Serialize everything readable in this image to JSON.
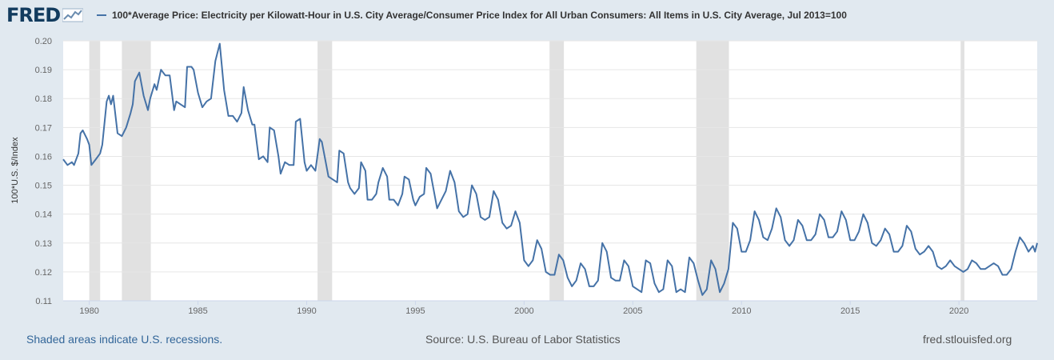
{
  "header": {
    "logo_text": "FRED",
    "logo_icon": "line-graph-icon",
    "legend_label": "100*Average Price: Electricity per Kilowatt-Hour in U.S. City Average/Consumer Price Index for All Urban Consumers: All Items in U.S. City Average, Jul 2013=100"
  },
  "footer": {
    "recession_note": "Shaded areas indicate U.S. recessions.",
    "source": "Source: U.S. Bureau of Labor Statistics",
    "site": "fred.stlouisfed.org"
  },
  "colors": {
    "page_background": "#e1e9f0",
    "plot_background": "#ffffff",
    "series_line": "#4572a7",
    "recession_shade": "#e1e1e1",
    "gridline": "#e6e6e6"
  },
  "chart_data": {
    "type": "line",
    "title": "100*Average Price: Electricity per Kilowatt-Hour in U.S. City Average/Consumer Price Index for All Urban Consumers: All Items in U.S. City Average, Jul 2013=100",
    "xlabel": "",
    "ylabel": "100*U.S. $/Index",
    "xlim": [
      1978.8,
      2023.6
    ],
    "ylim": [
      0.11,
      0.2
    ],
    "x_ticks": [
      1980,
      1985,
      1990,
      1995,
      2000,
      2005,
      2010,
      2015,
      2020
    ],
    "y_ticks": [
      0.11,
      0.12,
      0.13,
      0.14,
      0.15,
      0.16,
      0.17,
      0.18,
      0.19,
      0.2
    ],
    "y_tick_labels": [
      "0.11",
      "0.12",
      "0.13",
      "0.14",
      "0.15",
      "0.16",
      "0.17",
      "0.18",
      "0.19",
      "0.20"
    ],
    "grid": "horizontal",
    "legend": "top",
    "recessions": [
      [
        1980.0,
        1980.5
      ],
      [
        1981.5,
        1982.83
      ],
      [
        1990.5,
        1991.17
      ],
      [
        2001.17,
        2001.83
      ],
      [
        2007.92,
        2009.42
      ],
      [
        2020.08,
        2020.25
      ]
    ],
    "series": [
      {
        "name": "100*Average Price: Electricity per Kilowatt-Hour in U.S. City Average/Consumer Price Index for All Urban Consumers: All Items in U.S. City Average, Jul 2013=100",
        "color": "#4572a7",
        "points": [
          [
            1978.8,
            0.159
          ],
          [
            1979.0,
            0.157
          ],
          [
            1979.2,
            0.158
          ],
          [
            1979.3,
            0.157
          ],
          [
            1979.5,
            0.161
          ],
          [
            1979.6,
            0.168
          ],
          [
            1979.7,
            0.169
          ],
          [
            1979.9,
            0.166
          ],
          [
            1980.0,
            0.164
          ],
          [
            1980.1,
            0.157
          ],
          [
            1980.3,
            0.159
          ],
          [
            1980.5,
            0.161
          ],
          [
            1980.6,
            0.164
          ],
          [
            1980.8,
            0.179
          ],
          [
            1980.9,
            0.181
          ],
          [
            1981.0,
            0.178
          ],
          [
            1981.1,
            0.181
          ],
          [
            1981.3,
            0.168
          ],
          [
            1981.5,
            0.167
          ],
          [
            1981.7,
            0.17
          ],
          [
            1981.9,
            0.175
          ],
          [
            1982.0,
            0.178
          ],
          [
            1982.1,
            0.186
          ],
          [
            1982.3,
            0.189
          ],
          [
            1982.5,
            0.181
          ],
          [
            1982.7,
            0.176
          ],
          [
            1982.8,
            0.18
          ],
          [
            1983.0,
            0.185
          ],
          [
            1983.1,
            0.183
          ],
          [
            1983.3,
            0.19
          ],
          [
            1983.5,
            0.188
          ],
          [
            1983.7,
            0.188
          ],
          [
            1983.9,
            0.176
          ],
          [
            1984.0,
            0.179
          ],
          [
            1984.2,
            0.178
          ],
          [
            1984.4,
            0.177
          ],
          [
            1984.5,
            0.191
          ],
          [
            1984.7,
            0.191
          ],
          [
            1984.8,
            0.19
          ],
          [
            1985.0,
            0.182
          ],
          [
            1985.2,
            0.177
          ],
          [
            1985.4,
            0.179
          ],
          [
            1985.6,
            0.18
          ],
          [
            1985.8,
            0.193
          ],
          [
            1986.0,
            0.199
          ],
          [
            1986.2,
            0.183
          ],
          [
            1986.4,
            0.174
          ],
          [
            1986.6,
            0.174
          ],
          [
            1986.8,
            0.172
          ],
          [
            1987.0,
            0.175
          ],
          [
            1987.1,
            0.184
          ],
          [
            1987.3,
            0.176
          ],
          [
            1987.5,
            0.171
          ],
          [
            1987.6,
            0.171
          ],
          [
            1987.8,
            0.159
          ],
          [
            1988.0,
            0.16
          ],
          [
            1988.2,
            0.158
          ],
          [
            1988.3,
            0.17
          ],
          [
            1988.5,
            0.169
          ],
          [
            1988.7,
            0.16
          ],
          [
            1988.8,
            0.154
          ],
          [
            1989.0,
            0.158
          ],
          [
            1989.2,
            0.157
          ],
          [
            1989.4,
            0.157
          ],
          [
            1989.5,
            0.172
          ],
          [
            1989.7,
            0.173
          ],
          [
            1989.9,
            0.158
          ],
          [
            1990.0,
            0.155
          ],
          [
            1990.2,
            0.157
          ],
          [
            1990.4,
            0.155
          ],
          [
            1990.6,
            0.166
          ],
          [
            1990.7,
            0.165
          ],
          [
            1990.9,
            0.157
          ],
          [
            1991.0,
            0.153
          ],
          [
            1991.2,
            0.152
          ],
          [
            1991.4,
            0.151
          ],
          [
            1991.5,
            0.162
          ],
          [
            1991.7,
            0.161
          ],
          [
            1991.9,
            0.151
          ],
          [
            1992.0,
            0.149
          ],
          [
            1992.2,
            0.147
          ],
          [
            1992.4,
            0.149
          ],
          [
            1992.5,
            0.158
          ],
          [
            1992.7,
            0.155
          ],
          [
            1992.8,
            0.145
          ],
          [
            1993.0,
            0.145
          ],
          [
            1993.2,
            0.147
          ],
          [
            1993.3,
            0.151
          ],
          [
            1993.5,
            0.156
          ],
          [
            1993.7,
            0.153
          ],
          [
            1993.8,
            0.145
          ],
          [
            1994.0,
            0.145
          ],
          [
            1994.2,
            0.143
          ],
          [
            1994.4,
            0.147
          ],
          [
            1994.5,
            0.153
          ],
          [
            1994.7,
            0.152
          ],
          [
            1994.9,
            0.145
          ],
          [
            1995.0,
            0.143
          ],
          [
            1995.2,
            0.146
          ],
          [
            1995.4,
            0.147
          ],
          [
            1995.5,
            0.156
          ],
          [
            1995.7,
            0.154
          ],
          [
            1995.9,
            0.146
          ],
          [
            1996.0,
            0.142
          ],
          [
            1996.2,
            0.145
          ],
          [
            1996.4,
            0.148
          ],
          [
            1996.6,
            0.155
          ],
          [
            1996.8,
            0.151
          ],
          [
            1997.0,
            0.141
          ],
          [
            1997.2,
            0.139
          ],
          [
            1997.4,
            0.14
          ],
          [
            1997.6,
            0.15
          ],
          [
            1997.8,
            0.147
          ],
          [
            1998.0,
            0.139
          ],
          [
            1998.2,
            0.138
          ],
          [
            1998.4,
            0.139
          ],
          [
            1998.6,
            0.148
          ],
          [
            1998.8,
            0.145
          ],
          [
            1999.0,
            0.137
          ],
          [
            1999.2,
            0.135
          ],
          [
            1999.4,
            0.136
          ],
          [
            1999.6,
            0.141
          ],
          [
            1999.8,
            0.137
          ],
          [
            2000.0,
            0.124
          ],
          [
            2000.2,
            0.122
          ],
          [
            2000.4,
            0.124
          ],
          [
            2000.6,
            0.131
          ],
          [
            2000.8,
            0.128
          ],
          [
            2001.0,
            0.12
          ],
          [
            2001.2,
            0.119
          ],
          [
            2001.4,
            0.119
          ],
          [
            2001.6,
            0.126
          ],
          [
            2001.8,
            0.124
          ],
          [
            2002.0,
            0.118
          ],
          [
            2002.2,
            0.115
          ],
          [
            2002.4,
            0.117
          ],
          [
            2002.6,
            0.123
          ],
          [
            2002.8,
            0.121
          ],
          [
            2003.0,
            0.115
          ],
          [
            2003.2,
            0.115
          ],
          [
            2003.4,
            0.117
          ],
          [
            2003.6,
            0.13
          ],
          [
            2003.8,
            0.127
          ],
          [
            2004.0,
            0.118
          ],
          [
            2004.2,
            0.117
          ],
          [
            2004.4,
            0.117
          ],
          [
            2004.6,
            0.124
          ],
          [
            2004.8,
            0.122
          ],
          [
            2005.0,
            0.115
          ],
          [
            2005.2,
            0.114
          ],
          [
            2005.4,
            0.113
          ],
          [
            2005.6,
            0.124
          ],
          [
            2005.8,
            0.123
          ],
          [
            2006.0,
            0.116
          ],
          [
            2006.2,
            0.113
          ],
          [
            2006.4,
            0.114
          ],
          [
            2006.6,
            0.124
          ],
          [
            2006.8,
            0.122
          ],
          [
            2007.0,
            0.113
          ],
          [
            2007.2,
            0.114
          ],
          [
            2007.4,
            0.113
          ],
          [
            2007.6,
            0.125
          ],
          [
            2007.8,
            0.123
          ],
          [
            2008.0,
            0.117
          ],
          [
            2008.2,
            0.112
          ],
          [
            2008.4,
            0.114
          ],
          [
            2008.6,
            0.124
          ],
          [
            2008.8,
            0.121
          ],
          [
            2009.0,
            0.113
          ],
          [
            2009.2,
            0.116
          ],
          [
            2009.4,
            0.121
          ],
          [
            2009.6,
            0.137
          ],
          [
            2009.8,
            0.135
          ],
          [
            2010.0,
            0.127
          ],
          [
            2010.2,
            0.127
          ],
          [
            2010.4,
            0.131
          ],
          [
            2010.6,
            0.141
          ],
          [
            2010.8,
            0.138
          ],
          [
            2011.0,
            0.132
          ],
          [
            2011.2,
            0.131
          ],
          [
            2011.4,
            0.135
          ],
          [
            2011.6,
            0.142
          ],
          [
            2011.8,
            0.139
          ],
          [
            2012.0,
            0.131
          ],
          [
            2012.2,
            0.129
          ],
          [
            2012.4,
            0.131
          ],
          [
            2012.6,
            0.138
          ],
          [
            2012.8,
            0.136
          ],
          [
            2013.0,
            0.131
          ],
          [
            2013.2,
            0.131
          ],
          [
            2013.4,
            0.133
          ],
          [
            2013.6,
            0.14
          ],
          [
            2013.8,
            0.138
          ],
          [
            2014.0,
            0.132
          ],
          [
            2014.2,
            0.132
          ],
          [
            2014.4,
            0.134
          ],
          [
            2014.6,
            0.141
          ],
          [
            2014.8,
            0.138
          ],
          [
            2015.0,
            0.131
          ],
          [
            2015.2,
            0.131
          ],
          [
            2015.4,
            0.134
          ],
          [
            2015.6,
            0.14
          ],
          [
            2015.8,
            0.137
          ],
          [
            2016.0,
            0.13
          ],
          [
            2016.2,
            0.129
          ],
          [
            2016.4,
            0.131
          ],
          [
            2016.6,
            0.135
          ],
          [
            2016.8,
            0.133
          ],
          [
            2017.0,
            0.127
          ],
          [
            2017.2,
            0.127
          ],
          [
            2017.4,
            0.129
          ],
          [
            2017.6,
            0.136
          ],
          [
            2017.8,
            0.134
          ],
          [
            2018.0,
            0.128
          ],
          [
            2018.2,
            0.126
          ],
          [
            2018.4,
            0.127
          ],
          [
            2018.6,
            0.129
          ],
          [
            2018.8,
            0.127
          ],
          [
            2019.0,
            0.122
          ],
          [
            2019.2,
            0.121
          ],
          [
            2019.4,
            0.122
          ],
          [
            2019.6,
            0.124
          ],
          [
            2019.8,
            0.122
          ],
          [
            2020.0,
            0.121
          ],
          [
            2020.2,
            0.12
          ],
          [
            2020.4,
            0.121
          ],
          [
            2020.6,
            0.124
          ],
          [
            2020.8,
            0.123
          ],
          [
            2021.0,
            0.121
          ],
          [
            2021.2,
            0.121
          ],
          [
            2021.4,
            0.122
          ],
          [
            2021.6,
            0.123
          ],
          [
            2021.8,
            0.122
          ],
          [
            2022.0,
            0.119
          ],
          [
            2022.2,
            0.119
          ],
          [
            2022.4,
            0.121
          ],
          [
            2022.6,
            0.127
          ],
          [
            2022.8,
            0.132
          ],
          [
            2023.0,
            0.13
          ],
          [
            2023.2,
            0.127
          ],
          [
            2023.4,
            0.129
          ],
          [
            2023.5,
            0.127
          ],
          [
            2023.6,
            0.13
          ]
        ]
      }
    ]
  }
}
